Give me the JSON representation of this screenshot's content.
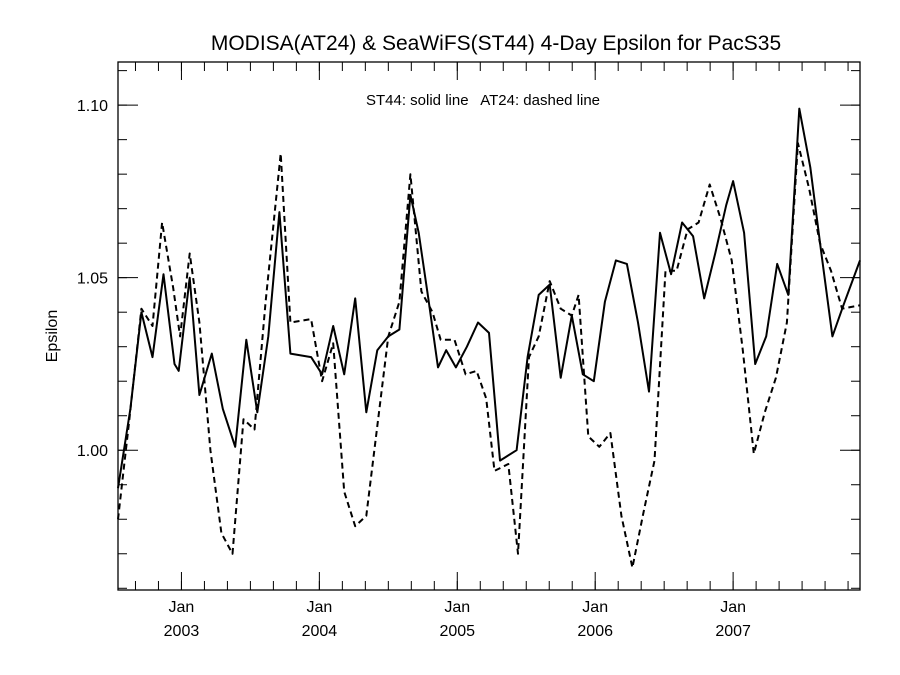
{
  "chart_data": {
    "type": "line",
    "title": "MODISA(AT24) & SeaWiFS(ST44) 4-Day Epsilon for PacS35",
    "annotation": "ST44: solid line   AT24: dashed line",
    "ylabel": "Epsilon",
    "xlabel": "",
    "xlim": [
      2002.54,
      2007.92
    ],
    "ylim": [
      0.9595,
      1.1125
    ],
    "grid": false,
    "legend": "none",
    "y_ticks": [
      {
        "value": 1.0,
        "label": "1.00"
      },
      {
        "value": 1.05,
        "label": "1.05"
      },
      {
        "value": 1.1,
        "label": "1.10"
      }
    ],
    "y_minor_step": 0.01,
    "x_ticks": [
      {
        "value": 2003.0,
        "month": "Jan",
        "year": "2003"
      },
      {
        "value": 2004.0,
        "month": "Jan",
        "year": "2004"
      },
      {
        "value": 2005.0,
        "month": "Jan",
        "year": "2005"
      },
      {
        "value": 2006.0,
        "month": "Jan",
        "year": "2006"
      },
      {
        "value": 2007.0,
        "month": "Jan",
        "year": "2007"
      }
    ],
    "x_minor_step": 0.16667,
    "series": [
      {
        "name": "ST44",
        "style": "solid",
        "color": "#000000",
        "points": [
          [
            2002.54,
            0.989
          ],
          [
            2002.63,
            1.012
          ],
          [
            2002.71,
            1.04
          ],
          [
            2002.79,
            1.027
          ],
          [
            2002.87,
            1.051
          ],
          [
            2002.95,
            1.025
          ],
          [
            2002.98,
            1.023
          ],
          [
            2003.06,
            1.05
          ],
          [
            2003.13,
            1.016
          ],
          [
            2003.22,
            1.028
          ],
          [
            2003.3,
            1.012
          ],
          [
            2003.39,
            1.001
          ],
          [
            2003.47,
            1.032
          ],
          [
            2003.55,
            1.011
          ],
          [
            2003.63,
            1.033
          ],
          [
            2003.71,
            1.069
          ],
          [
            2003.79,
            1.028
          ],
          [
            2003.94,
            1.027
          ],
          [
            2004.02,
            1.022
          ],
          [
            2004.1,
            1.036
          ],
          [
            2004.18,
            1.022
          ],
          [
            2004.26,
            1.044
          ],
          [
            2004.34,
            1.011
          ],
          [
            2004.42,
            1.029
          ],
          [
            2004.5,
            1.033
          ],
          [
            2004.58,
            1.035
          ],
          [
            2004.66,
            1.074
          ],
          [
            2004.72,
            1.063
          ],
          [
            2004.79,
            1.044
          ],
          [
            2004.86,
            1.024
          ],
          [
            2004.92,
            1.029
          ],
          [
            2004.99,
            1.024
          ],
          [
            2005.07,
            1.03
          ],
          [
            2005.15,
            1.037
          ],
          [
            2005.23,
            1.034
          ],
          [
            2005.31,
            0.997
          ],
          [
            2005.35,
            0.998
          ],
          [
            2005.43,
            1.0
          ],
          [
            2005.51,
            1.027
          ],
          [
            2005.59,
            1.045
          ],
          [
            2005.67,
            1.048
          ],
          [
            2005.75,
            1.021
          ],
          [
            2005.83,
            1.039
          ],
          [
            2005.91,
            1.022
          ],
          [
            2005.99,
            1.02
          ],
          [
            2006.07,
            1.043
          ],
          [
            2006.15,
            1.055
          ],
          [
            2006.23,
            1.054
          ],
          [
            2006.31,
            1.037
          ],
          [
            2006.39,
            1.017
          ],
          [
            2006.47,
            1.063
          ],
          [
            2006.55,
            1.051
          ],
          [
            2006.63,
            1.066
          ],
          [
            2006.71,
            1.062
          ],
          [
            2006.79,
            1.044
          ],
          [
            2006.87,
            1.057
          ],
          [
            2006.95,
            1.071
          ],
          [
            2007.0,
            1.078
          ],
          [
            2007.08,
            1.063
          ],
          [
            2007.16,
            1.025
          ],
          [
            2007.24,
            1.033
          ],
          [
            2007.32,
            1.054
          ],
          [
            2007.4,
            1.045
          ],
          [
            2007.48,
            1.099
          ],
          [
            2007.56,
            1.082
          ],
          [
            2007.64,
            1.057
          ],
          [
            2007.72,
            1.033
          ],
          [
            2007.8,
            1.042
          ],
          [
            2007.92,
            1.055
          ]
        ]
      },
      {
        "name": "AT24",
        "style": "dashed",
        "color": "#000000",
        "points": [
          [
            2002.54,
            0.98
          ],
          [
            2002.62,
            1.008
          ],
          [
            2002.71,
            1.041
          ],
          [
            2002.79,
            1.036
          ],
          [
            2002.86,
            1.066
          ],
          [
            2002.94,
            1.047
          ],
          [
            2002.99,
            1.033
          ],
          [
            2003.06,
            1.057
          ],
          [
            2003.13,
            1.037
          ],
          [
            2003.21,
            1.0
          ],
          [
            2003.29,
            0.976
          ],
          [
            2003.37,
            0.97
          ],
          [
            2003.45,
            1.009
          ],
          [
            2003.53,
            1.006
          ],
          [
            2003.61,
            1.043
          ],
          [
            2003.72,
            1.086
          ],
          [
            2003.79,
            1.037
          ],
          [
            2003.94,
            1.038
          ],
          [
            2004.02,
            1.02
          ],
          [
            2004.1,
            1.031
          ],
          [
            2004.18,
            0.988
          ],
          [
            2004.26,
            0.978
          ],
          [
            2004.34,
            0.981
          ],
          [
            2004.42,
            1.007
          ],
          [
            2004.5,
            1.033
          ],
          [
            2004.58,
            1.043
          ],
          [
            2004.66,
            1.08
          ],
          [
            2004.74,
            1.046
          ],
          [
            2004.82,
            1.04
          ],
          [
            2004.88,
            1.032
          ],
          [
            2004.98,
            1.032
          ],
          [
            2005.06,
            1.022
          ],
          [
            2005.14,
            1.023
          ],
          [
            2005.21,
            1.015
          ],
          [
            2005.27,
            0.994
          ],
          [
            2005.37,
            0.996
          ],
          [
            2005.44,
            0.97
          ],
          [
            2005.52,
            1.027
          ],
          [
            2005.59,
            1.033
          ],
          [
            2005.67,
            1.049
          ],
          [
            2005.75,
            1.041
          ],
          [
            2005.83,
            1.039
          ],
          [
            2005.88,
            1.045
          ],
          [
            2005.95,
            1.004
          ],
          [
            2006.03,
            1.001
          ],
          [
            2006.11,
            1.005
          ],
          [
            2006.19,
            0.981
          ],
          [
            2006.27,
            0.966
          ],
          [
            2006.35,
            0.982
          ],
          [
            2006.43,
            0.997
          ],
          [
            2006.51,
            1.052
          ],
          [
            2006.59,
            1.052
          ],
          [
            2006.67,
            1.064
          ],
          [
            2006.75,
            1.066
          ],
          [
            2006.83,
            1.077
          ],
          [
            2006.91,
            1.067
          ],
          [
            2006.99,
            1.055
          ],
          [
            2007.07,
            1.029
          ],
          [
            2007.15,
            0.999
          ],
          [
            2007.23,
            1.011
          ],
          [
            2007.31,
            1.021
          ],
          [
            2007.39,
            1.037
          ],
          [
            2007.47,
            1.089
          ],
          [
            2007.55,
            1.076
          ],
          [
            2007.63,
            1.06
          ],
          [
            2007.71,
            1.052
          ],
          [
            2007.79,
            1.041
          ],
          [
            2007.92,
            1.042
          ]
        ]
      }
    ]
  }
}
